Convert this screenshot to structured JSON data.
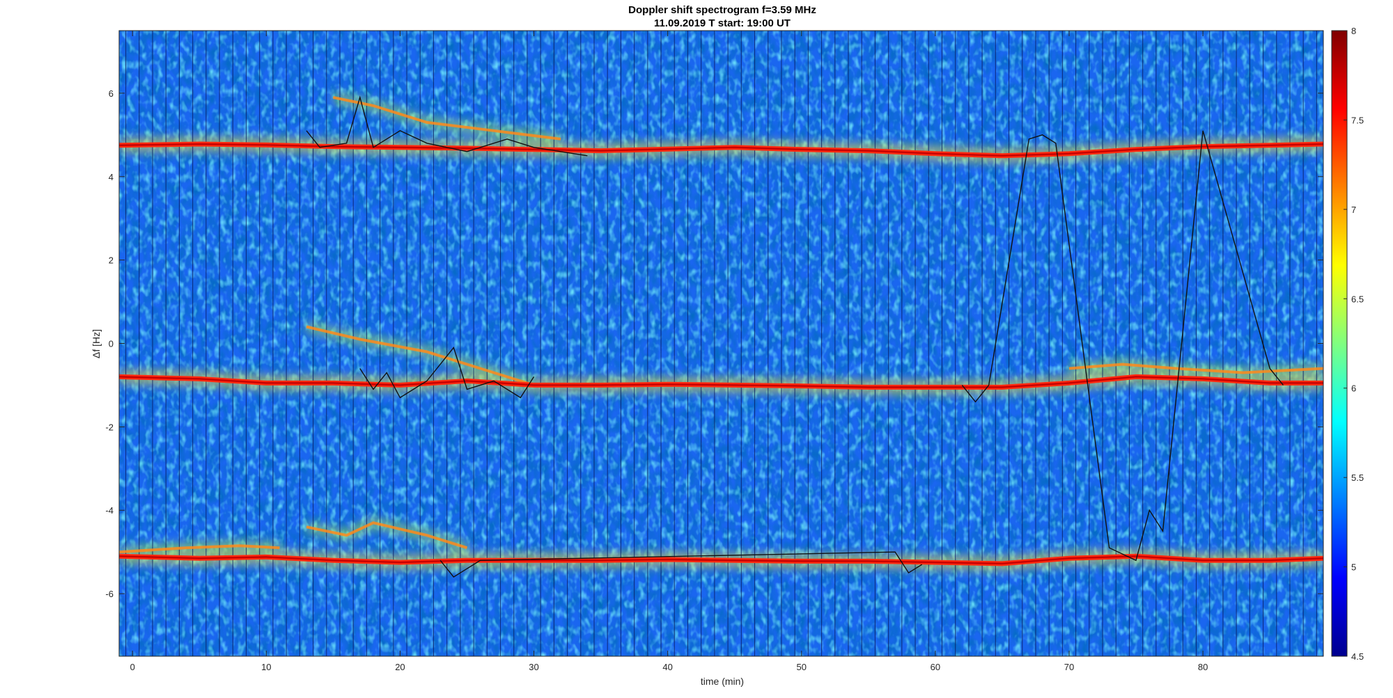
{
  "chart_data": {
    "type": "heatmap",
    "title": "Doppler shift spectrogram f=3.59 MHz",
    "subtitle": "11.09.2019   T start: 19:00 UT",
    "xlabel": "time (min)",
    "ylabel": "Δf [Hz]",
    "xlim": [
      -1,
      89
    ],
    "ylim": [
      -7.5,
      7.5
    ],
    "x_ticks": [
      0,
      10,
      20,
      30,
      40,
      50,
      60,
      70,
      80
    ],
    "y_ticks": [
      -6,
      -4,
      -2,
      0,
      2,
      4,
      6
    ],
    "colorbar": {
      "colormap": "jet",
      "range": [
        4.5,
        8
      ],
      "ticks": [
        4.5,
        5,
        5.5,
        6,
        6.5,
        7,
        7.5,
        8
      ]
    },
    "grid": false,
    "traces": [
      {
        "name": "",
        "points": [
          [
            -1,
            4.75
          ],
          [
            5,
            4.78
          ],
          [
            10,
            4.76
          ],
          [
            15,
            4.72
          ],
          [
            20,
            4.7
          ],
          [
            25,
            4.68
          ],
          [
            30,
            4.65
          ],
          [
            35,
            4.62
          ],
          [
            40,
            4.66
          ],
          [
            45,
            4.7
          ],
          [
            50,
            4.65
          ],
          [
            55,
            4.62
          ],
          [
            60,
            4.55
          ],
          [
            65,
            4.5
          ],
          [
            70,
            4.55
          ],
          [
            75,
            4.65
          ],
          [
            80,
            4.72
          ],
          [
            85,
            4.75
          ],
          [
            89,
            4.78
          ]
        ]
      },
      {
        "name": "",
        "points": [
          [
            -1,
            -0.8
          ],
          [
            5,
            -0.85
          ],
          [
            10,
            -0.95
          ],
          [
            15,
            -0.95
          ],
          [
            20,
            -1.0
          ],
          [
            25,
            -0.9
          ],
          [
            30,
            -1.0
          ],
          [
            35,
            -1.0
          ],
          [
            40,
            -0.98
          ],
          [
            45,
            -1.0
          ],
          [
            50,
            -1.02
          ],
          [
            55,
            -1.05
          ],
          [
            60,
            -1.05
          ],
          [
            65,
            -1.05
          ],
          [
            70,
            -0.95
          ],
          [
            75,
            -0.8
          ],
          [
            80,
            -0.85
          ],
          [
            85,
            -0.95
          ],
          [
            89,
            -0.95
          ]
        ]
      },
      {
        "name": "",
        "points": [
          [
            -1,
            -5.1
          ],
          [
            5,
            -5.15
          ],
          [
            10,
            -5.12
          ],
          [
            15,
            -5.2
          ],
          [
            20,
            -5.25
          ],
          [
            25,
            -5.2
          ],
          [
            30,
            -5.2
          ],
          [
            35,
            -5.2
          ],
          [
            40,
            -5.18
          ],
          [
            45,
            -5.2
          ],
          [
            50,
            -5.22
          ],
          [
            55,
            -5.22
          ],
          [
            60,
            -5.25
          ],
          [
            65,
            -5.28
          ],
          [
            70,
            -5.15
          ],
          [
            75,
            -5.1
          ],
          [
            80,
            -5.2
          ],
          [
            85,
            -5.2
          ],
          [
            89,
            -5.15
          ]
        ]
      }
    ],
    "secondary_traces": [
      {
        "points": [
          [
            -1,
            -5.0
          ],
          [
            4,
            -4.9
          ],
          [
            8,
            -4.85
          ],
          [
            11,
            -4.9
          ]
        ]
      },
      {
        "points": [
          [
            13,
            -4.4
          ],
          [
            16,
            -4.6
          ],
          [
            18,
            -4.3
          ],
          [
            22,
            -4.6
          ],
          [
            25,
            -4.9
          ]
        ]
      },
      {
        "points": [
          [
            13,
            0.4
          ],
          [
            17,
            0.1
          ],
          [
            22,
            -0.2
          ],
          [
            26,
            -0.6
          ],
          [
            30,
            -1.0
          ]
        ]
      },
      {
        "points": [
          [
            15,
            5.9
          ],
          [
            18,
            5.7
          ],
          [
            22,
            5.3
          ],
          [
            27,
            5.1
          ],
          [
            32,
            4.9
          ]
        ]
      },
      {
        "points": [
          [
            70,
            -0.6
          ],
          [
            74,
            -0.5
          ],
          [
            78,
            -0.6
          ],
          [
            83,
            -0.7
          ],
          [
            89,
            -0.6
          ]
        ]
      }
    ],
    "black_overlay": [
      {
        "points": [
          [
            13,
            5.1
          ],
          [
            14,
            4.7
          ],
          [
            16,
            4.8
          ],
          [
            17,
            5.9
          ],
          [
            18,
            4.7
          ],
          [
            20,
            5.1
          ],
          [
            22,
            4.8
          ],
          [
            25,
            4.6
          ],
          [
            28,
            4.9
          ],
          [
            30,
            4.7
          ],
          [
            34,
            4.5
          ]
        ]
      },
      {
        "points": [
          [
            17,
            -0.6
          ],
          [
            18,
            -1.1
          ],
          [
            19,
            -0.7
          ],
          [
            20,
            -1.3
          ],
          [
            22,
            -0.9
          ],
          [
            24,
            -0.1
          ],
          [
            25,
            -1.1
          ],
          [
            27,
            -0.9
          ],
          [
            29,
            -1.3
          ],
          [
            30,
            -0.8
          ]
        ]
      },
      {
        "points": [
          [
            23,
            -5.2
          ],
          [
            24,
            -5.6
          ],
          [
            26,
            -5.2
          ],
          [
            57,
            -5.0
          ],
          [
            58,
            -5.5
          ],
          [
            59,
            -5.3
          ]
        ]
      },
      {
        "points": [
          [
            62,
            -1.0
          ],
          [
            63,
            -1.4
          ],
          [
            64,
            -1.0
          ],
          [
            67,
            4.9
          ],
          [
            68,
            5.0
          ],
          [
            69,
            4.8
          ],
          [
            73,
            -4.9
          ],
          [
            75,
            -5.2
          ],
          [
            76,
            -4.0
          ],
          [
            77,
            -4.5
          ],
          [
            80,
            5.1
          ],
          [
            85,
            -0.6
          ],
          [
            86,
            -1.0
          ]
        ]
      }
    ]
  }
}
